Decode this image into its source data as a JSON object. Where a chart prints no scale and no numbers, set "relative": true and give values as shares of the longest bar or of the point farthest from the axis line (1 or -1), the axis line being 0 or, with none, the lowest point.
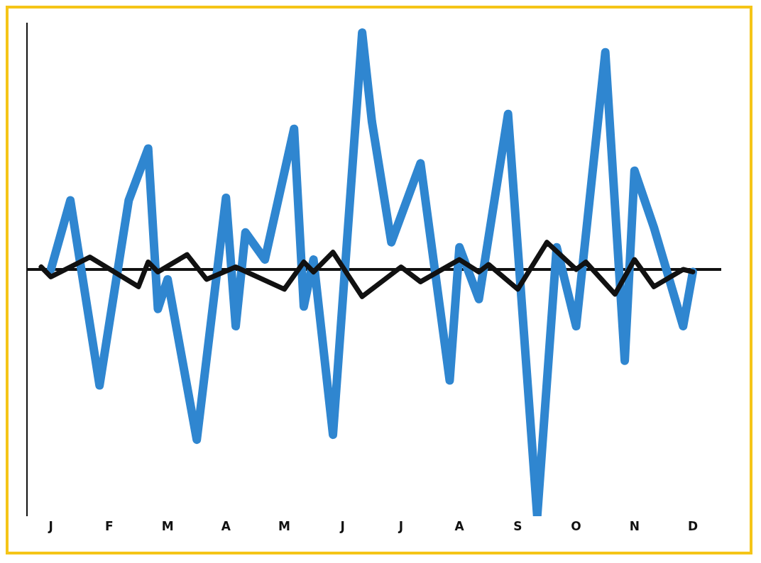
{
  "chart_data": {
    "type": "line",
    "relative": true,
    "marker": "none",
    "line_style": "solid",
    "categories": [
      null,
      "J",
      null,
      null,
      null,
      null,
      null,
      "F",
      null,
      null,
      null,
      null,
      null,
      "M",
      null,
      null,
      null,
      null,
      null,
      "A",
      null,
      null,
      null,
      null,
      null,
      "M",
      null,
      null,
      null,
      null,
      null,
      "J",
      null,
      null,
      null,
      null,
      null,
      "J",
      null,
      null,
      null,
      null,
      null,
      "A",
      null,
      null,
      null,
      null,
      null,
      "S",
      null,
      null,
      null,
      null,
      null,
      "O",
      null,
      null,
      null,
      null,
      null,
      "N",
      null,
      null,
      null,
      null,
      null,
      "D"
    ],
    "series": [
      {
        "color": "#2f86d0",
        "values": [
          null,
          0,
          null,
          0.28,
          null,
          null,
          -0.47,
          null,
          null,
          0.28,
          null,
          0.49,
          -0.16,
          -0.04,
          null,
          null,
          -0.69,
          null,
          null,
          0.29,
          -0.23,
          0.15,
          null,
          0.04,
          null,
          null,
          0.57,
          -0.15,
          0.04,
          null,
          -0.67,
          null,
          null,
          0.96,
          0.6,
          null,
          0.11,
          null,
          null,
          0.43,
          null,
          null,
          -0.45,
          0.09,
          null,
          -0.12,
          null,
          null,
          0.63,
          null,
          null,
          -1,
          null,
          0.09,
          null,
          -0.23,
          null,
          null,
          0.88,
          null,
          -0.37,
          0.4,
          null,
          0.17,
          null,
          null,
          -0.23,
          -0.01
        ]
      },
      {
        "color": "#111111",
        "values": [
          0.01,
          -0.03,
          null,
          null,
          null,
          0.05,
          null,
          null,
          null,
          null,
          -0.07,
          0.03,
          -0.01,
          null,
          null,
          0.06,
          null,
          -0.04,
          null,
          null,
          0.01,
          null,
          null,
          null,
          null,
          -0.08,
          null,
          0.03,
          -0.01,
          null,
          0.07,
          null,
          null,
          -0.11,
          null,
          null,
          null,
          0.01,
          null,
          -0.05,
          null,
          null,
          null,
          0.04,
          null,
          -0.01,
          0.02,
          null,
          null,
          -0.08,
          null,
          null,
          0.11,
          null,
          null,
          0,
          0.03,
          null,
          null,
          -0.1,
          null,
          0.04,
          null,
          -0.07,
          null,
          null,
          0,
          -0.01
        ]
      }
    ]
  }
}
